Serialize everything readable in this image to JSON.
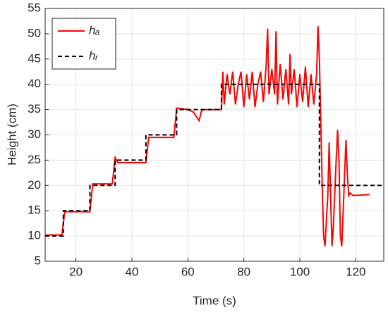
{
  "chart_data": {
    "type": "line",
    "x_label": "Time (s)",
    "y_label": "Height (cm)",
    "xlim": [
      9,
      130
    ],
    "ylim": [
      5,
      55
    ],
    "xticks": [
      20,
      40,
      60,
      80,
      100,
      120
    ],
    "yticks": [
      5,
      10,
      15,
      20,
      25,
      30,
      35,
      40,
      45,
      50,
      55
    ],
    "grid": true,
    "legend": "upper left",
    "series": [
      {
        "name": "hₐ",
        "color": "#ff0000",
        "dash": false,
        "x": [
          9,
          15,
          16,
          25,
          26,
          33,
          34,
          35,
          45,
          46,
          55,
          56,
          60,
          62,
          64,
          65,
          72,
          72.5,
          73,
          74,
          75,
          76,
          77,
          78,
          79,
          80,
          81,
          82,
          83,
          84,
          85,
          86,
          87,
          88,
          88.5,
          89,
          90,
          91,
          91.5,
          92,
          93,
          94,
          95,
          96,
          96.5,
          97,
          98,
          99,
          100,
          101,
          102,
          103,
          104,
          105,
          106,
          106.5,
          107,
          108,
          108.5,
          109,
          110,
          110.5,
          111,
          111.5,
          112,
          113,
          113.5,
          114,
          114.5,
          115,
          116,
          116.5,
          117,
          117.5,
          118,
          119,
          125
        ],
        "values": [
          10.2,
          10.2,
          14.8,
          14.8,
          20.3,
          20.3,
          25.5,
          24.5,
          24.5,
          29.5,
          29.5,
          35.3,
          35,
          34.5,
          32.8,
          35,
          35,
          42.5,
          36,
          42,
          38,
          42.5,
          36,
          40,
          42.5,
          35.5,
          42,
          37,
          42.5,
          35.5,
          40,
          42.5,
          36.5,
          44,
          51,
          38,
          43,
          38,
          50.5,
          36,
          44,
          37,
          43,
          36,
          46,
          38,
          43,
          35.5,
          42,
          36.5,
          43.5,
          35.5,
          42,
          36,
          42,
          51.5,
          45,
          20,
          10,
          8,
          18,
          28.5,
          18,
          8,
          12,
          25,
          31,
          25,
          10,
          8,
          22,
          29,
          22,
          18,
          18.5,
          18,
          18.2
        ]
      },
      {
        "name": "hᵣ",
        "color": "#000000",
        "dash": true,
        "x": [
          9,
          15.5,
          15.5,
          25,
          25,
          34,
          34,
          45,
          45,
          56,
          56,
          72,
          72,
          107,
          107,
          130
        ],
        "values": [
          10,
          10,
          15,
          15,
          20,
          20,
          25,
          25,
          30,
          30,
          35,
          35,
          40,
          40,
          20,
          20
        ]
      }
    ]
  }
}
